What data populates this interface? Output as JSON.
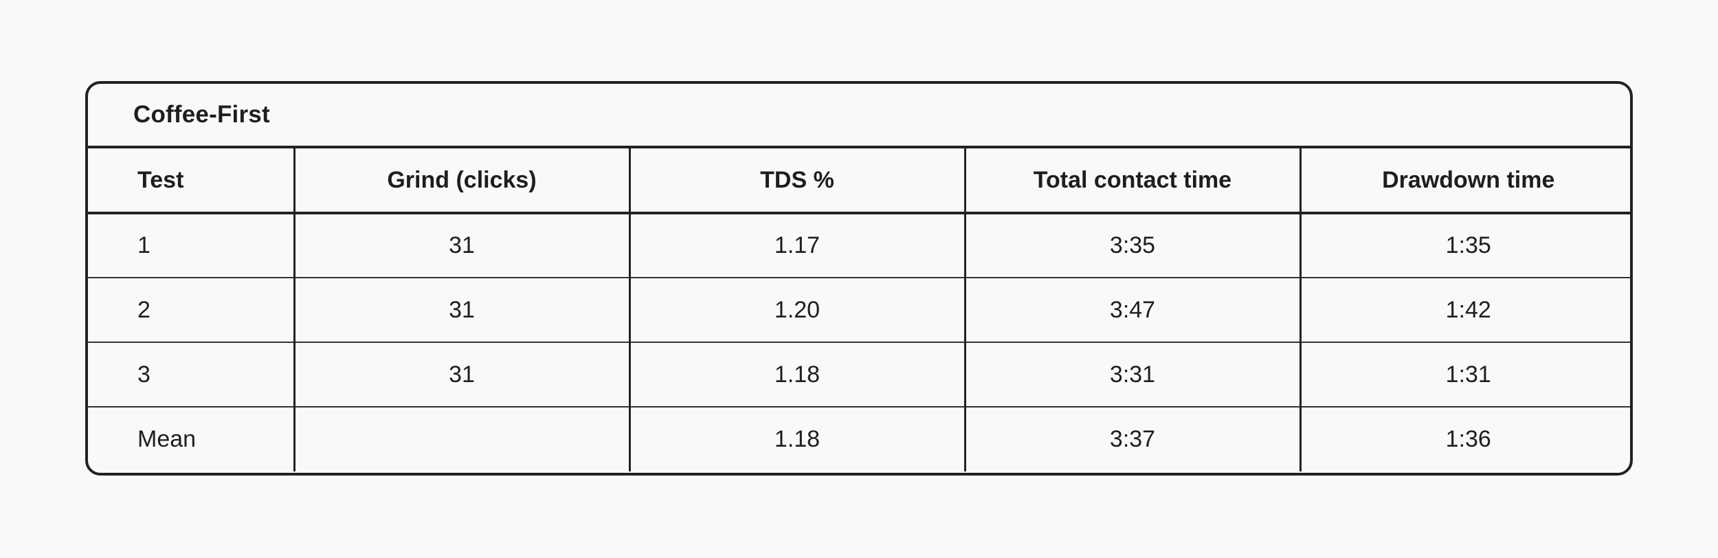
{
  "table": {
    "title": "Coffee-First",
    "headers": [
      "Test",
      "Grind (clicks)",
      "TDS %",
      "Total contact time",
      "Drawdown time"
    ],
    "rows": [
      [
        "1",
        "31",
        "1.17",
        "3:35",
        "1:35"
      ],
      [
        "2",
        "31",
        "1.20",
        "3:47",
        "1:42"
      ],
      [
        "3",
        "31",
        "1.18",
        "3:31",
        "1:31"
      ],
      [
        "Mean",
        "",
        "1.18",
        "3:37",
        "1:36"
      ]
    ]
  }
}
